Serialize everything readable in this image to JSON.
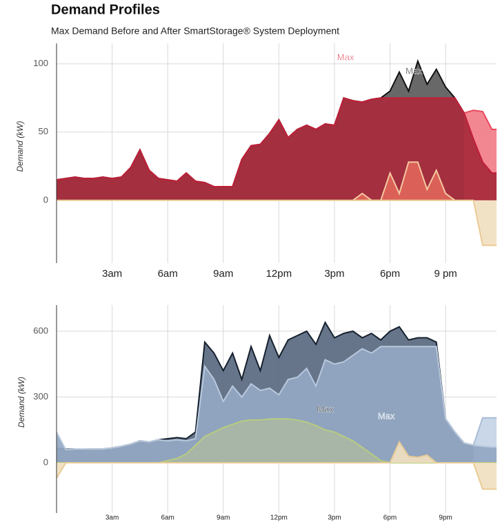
{
  "chart_data": [
    {
      "type": "area",
      "title": "Demand Profiles",
      "subtitle": "Max Demand Before and After SmartStorage® System Deployment",
      "ylabel": "Demand (kW)",
      "x": [
        0,
        0.5,
        1,
        1.5,
        2,
        2.5,
        3,
        3.5,
        4,
        4.5,
        5,
        5.5,
        6,
        6.5,
        7,
        7.5,
        8,
        8.5,
        9,
        9.5,
        10,
        10.5,
        11,
        11.5,
        12,
        12.5,
        13,
        13.5,
        14,
        14.5,
        15,
        15.5,
        16,
        16.5,
        17,
        17.5,
        18,
        18.5,
        19,
        19.5,
        20,
        20.5,
        21,
        21.5,
        22,
        22.5,
        23,
        23.5,
        23.75
      ],
      "xlim": [
        0,
        23.75
      ],
      "xticks": [
        {
          "value": 3,
          "label": "3am"
        },
        {
          "value": 6,
          "label": "6am"
        },
        {
          "value": 9,
          "label": "9am"
        },
        {
          "value": 12,
          "label": "12pm"
        },
        {
          "value": 15,
          "label": "3pm"
        },
        {
          "value": 18,
          "label": "6pm"
        },
        {
          "value": 21,
          "label": "9 pm"
        }
      ],
      "ylim": [
        -46,
        115
      ],
      "yticks": [
        0,
        50,
        100
      ],
      "grid": true,
      "annotations": [
        {
          "text": "Max",
          "color": "#e0304a"
        },
        {
          "text": "Max",
          "color": "#111111"
        }
      ],
      "series": [
        {
          "color": "#5b5b5b",
          "line_color": "#111111",
          "values": [
            15,
            16,
            17,
            16,
            16,
            17,
            16,
            17,
            24,
            37,
            22,
            16,
            15,
            14,
            20,
            14,
            13,
            10,
            10,
            10,
            30,
            40,
            41,
            49,
            59,
            46,
            52,
            55,
            52,
            56,
            55,
            75,
            73,
            72,
            74,
            75,
            80,
            94,
            80,
            102,
            85,
            96,
            83,
            75,
            64,
            45,
            28,
            20,
            20
          ]
        },
        {
          "color": "#f27d88",
          "line_color": "#e8485a",
          "values": [
            null,
            null,
            null,
            null,
            null,
            null,
            null,
            null,
            null,
            null,
            null,
            null,
            null,
            null,
            null,
            null,
            null,
            null,
            null,
            null,
            null,
            null,
            null,
            null,
            null,
            null,
            null,
            null,
            null,
            null,
            null,
            null,
            null,
            null,
            null,
            null,
            null,
            null,
            null,
            null,
            null,
            null,
            null,
            null,
            64,
            66,
            65,
            52,
            52
          ]
        },
        {
          "color": "#a82a3c",
          "line_color": "#c01f38",
          "values": [
            15,
            16,
            17,
            16,
            16,
            17,
            16,
            17,
            24,
            37,
            22,
            16,
            15,
            14,
            20,
            14,
            13,
            10,
            10,
            10,
            30,
            40,
            41,
            49,
            59,
            46,
            52,
            55,
            52,
            56,
            55,
            75,
            73,
            72,
            74,
            75,
            75,
            75,
            75,
            75,
            75,
            75,
            75,
            75,
            64,
            45,
            28,
            20,
            20
          ]
        },
        {
          "color": "#e0665a",
          "line_color": "#f5c9a0",
          "values": [
            null,
            null,
            null,
            null,
            null,
            null,
            null,
            null,
            null,
            null,
            null,
            null,
            null,
            null,
            null,
            null,
            null,
            null,
            null,
            null,
            null,
            null,
            null,
            null,
            null,
            null,
            null,
            null,
            null,
            null,
            null,
            null,
            0,
            5,
            0,
            0,
            20,
            5,
            28,
            28,
            8,
            22,
            5,
            0,
            null,
            null,
            null,
            null,
            null
          ]
        },
        {
          "color": "#f1e0c0",
          "line_color": "#e9cb95",
          "values": [
            0,
            0,
            0,
            0,
            0,
            0,
            0,
            0,
            0,
            0,
            0,
            0,
            0,
            0,
            0,
            0,
            0,
            0,
            0,
            0,
            0,
            0,
            0,
            0,
            0,
            0,
            0,
            0,
            0,
            0,
            0,
            0,
            0,
            0,
            0,
            0,
            0,
            0,
            0,
            0,
            0,
            0,
            0,
            0,
            0,
            0,
            -33,
            -33,
            -33
          ]
        }
      ]
    },
    {
      "type": "area",
      "ylabel": "Demand (kW)",
      "x": [
        0,
        0.5,
        1,
        1.5,
        2,
        2.5,
        3,
        3.5,
        4,
        4.5,
        5,
        5.5,
        6,
        6.5,
        7,
        7.5,
        8,
        8.5,
        9,
        9.5,
        10,
        10.5,
        11,
        11.5,
        12,
        12.5,
        13,
        13.5,
        14,
        14.5,
        15,
        15.5,
        16,
        16.5,
        17,
        17.5,
        18,
        18.5,
        19,
        19.5,
        20,
        20.5,
        21,
        21.5,
        22,
        22.5,
        23,
        23.5,
        23.75
      ],
      "xlim": [
        0,
        23.75
      ],
      "xticks": [
        {
          "value": 3,
          "label": "3am"
        },
        {
          "value": 6,
          "label": "6am"
        },
        {
          "value": 9,
          "label": "9am"
        },
        {
          "value": 12,
          "label": "12pm"
        },
        {
          "value": 15,
          "label": "3pm"
        },
        {
          "value": 18,
          "label": "6pm"
        },
        {
          "value": 21,
          "label": "9pm"
        }
      ],
      "ylim": [
        -229,
        719
      ],
      "yticks": [
        0,
        300,
        600
      ],
      "grid": true,
      "annotations": [
        {
          "text": "Max",
          "color": "#111111"
        },
        {
          "text": "Max",
          "color": "#a9bcd6"
        }
      ],
      "series": [
        {
          "color": "#5a6981",
          "line_color": "#16202e",
          "values": [
            65,
            62,
            63,
            63,
            62,
            63,
            68,
            75,
            85,
            100,
            95,
            105,
            110,
            115,
            110,
            140,
            550,
            500,
            420,
            500,
            380,
            530,
            420,
            580,
            480,
            560,
            580,
            600,
            540,
            640,
            570,
            590,
            600,
            570,
            590,
            560,
            600,
            620,
            560,
            570,
            570,
            550,
            200,
            140,
            90,
            80,
            75,
            72,
            72
          ]
        },
        {
          "color": "#c6d4e6",
          "line_color": "#a9bcd6",
          "values": [
            null,
            null,
            null,
            null,
            null,
            null,
            null,
            null,
            null,
            null,
            null,
            null,
            null,
            null,
            null,
            null,
            null,
            null,
            null,
            null,
            null,
            null,
            null,
            null,
            null,
            null,
            null,
            null,
            null,
            null,
            null,
            null,
            null,
            null,
            null,
            null,
            null,
            null,
            null,
            null,
            null,
            null,
            null,
            null,
            null,
            80,
            205,
            205,
            205
          ]
        },
        {
          "color": "#94a8c3",
          "line_color": "#b9c9dd",
          "values": [
            140,
            60,
            63,
            63,
            62,
            63,
            68,
            75,
            85,
            100,
            95,
            105,
            100,
            105,
            100,
            110,
            440,
            380,
            280,
            350,
            300,
            360,
            330,
            340,
            310,
            380,
            390,
            430,
            350,
            470,
            450,
            460,
            490,
            520,
            500,
            530,
            530,
            530,
            530,
            530,
            530,
            530,
            200,
            140,
            90,
            80,
            75,
            72,
            72
          ]
        },
        {
          "color": "#a9b7a4",
          "line_color": "#b8cc80",
          "values": [
            0,
            0,
            0,
            0,
            0,
            0,
            0,
            0,
            0,
            0,
            0,
            0,
            10,
            20,
            40,
            80,
            120,
            140,
            160,
            175,
            190,
            195,
            195,
            200,
            200,
            200,
            195,
            185,
            170,
            150,
            140,
            120,
            100,
            70,
            40,
            10,
            0,
            0,
            0,
            0,
            0,
            0,
            0,
            0,
            0,
            0,
            0,
            0,
            0
          ]
        },
        {
          "color": "#f1e0c0",
          "line_color": "#e9cb95",
          "values": [
            -70,
            0,
            0,
            0,
            0,
            0,
            0,
            0,
            0,
            0,
            0,
            0,
            0,
            0,
            0,
            0,
            0,
            0,
            0,
            0,
            0,
            0,
            0,
            0,
            0,
            0,
            0,
            0,
            0,
            0,
            0,
            0,
            0,
            0,
            0,
            0,
            0,
            95,
            30,
            25,
            35,
            0,
            0,
            0,
            0,
            0,
            -120,
            -120,
            -120
          ]
        }
      ]
    }
  ]
}
